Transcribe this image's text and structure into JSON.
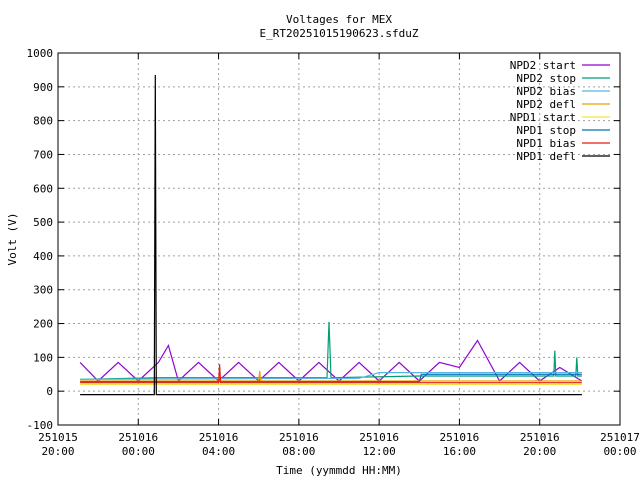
{
  "chart_data": {
    "type": "line",
    "title": "Voltages for MEX",
    "subtitle": "E_RT20251015190623.sfduZ",
    "x_label": "Time (yymmdd HH:MM)",
    "y_label": "Volt (V)",
    "xlim": [
      20,
      48
    ],
    "ylim": [
      -100,
      1000
    ],
    "xticks": [
      {
        "value": 20,
        "label": "251015 20:00"
      },
      {
        "value": 24,
        "label": "251016 00:00"
      },
      {
        "value": 28,
        "label": "251016 04:00"
      },
      {
        "value": 32,
        "label": "251016 08:00"
      },
      {
        "value": 36,
        "label": "251016 12:00"
      },
      {
        "value": 40,
        "label": "251016 16:00"
      },
      {
        "value": 44,
        "label": "251016 20:00"
      },
      {
        "value": 48,
        "label": "251017 00:00"
      }
    ],
    "yticks": [
      -100,
      0,
      100,
      200,
      300,
      400,
      500,
      600,
      700,
      800,
      900,
      1000
    ],
    "grid": true,
    "legend": "top-right",
    "series": [
      {
        "name": "NPD2 start",
        "color": "#9400d3",
        "x": [
          21.1,
          22,
          23,
          24,
          25,
          25.5,
          26,
          27,
          28,
          29,
          30,
          31,
          32,
          33,
          34,
          35,
          36,
          37,
          38,
          39,
          40,
          40.9,
          42,
          43,
          44,
          45,
          46.1
        ],
        "values": [
          85,
          30,
          85,
          30,
          85,
          135,
          30,
          85,
          30,
          85,
          30,
          85,
          30,
          85,
          30,
          85,
          30,
          85,
          30,
          85,
          70,
          150,
          30,
          85,
          30,
          70,
          30
        ]
      },
      {
        "name": "NPD2 stop",
        "color": "#009e73",
        "x": [
          21.1,
          25,
          30,
          33.4,
          33.5,
          33.6,
          38,
          44.7,
          44.75,
          44.8,
          45.8,
          45.85,
          45.9,
          46.1
        ],
        "values": [
          35,
          40,
          40,
          40,
          205,
          40,
          45,
          45,
          120,
          45,
          45,
          100,
          45,
          45
        ]
      },
      {
        "name": "NPD2 bias",
        "color": "#56b4e9",
        "x": [
          21.1,
          35,
          36,
          46.1
        ],
        "values": [
          35,
          38,
          55,
          55
        ]
      },
      {
        "name": "NPD2 defl",
        "color": "#e69f00",
        "x": [
          21.1,
          30,
          30.05,
          30.1,
          46.1
        ],
        "values": [
          30,
          30,
          60,
          30,
          30
        ]
      },
      {
        "name": "NPD1 start",
        "color": "#f0e442",
        "x": [
          21.1,
          46.1
        ],
        "values": [
          20,
          20
        ]
      },
      {
        "name": "NPD1 stop",
        "color": "#0072b2",
        "x": [
          21.1,
          38,
          38.1,
          46.1
        ],
        "values": [
          28,
          28,
          50,
          50
        ]
      },
      {
        "name": "NPD1 bias",
        "color": "#e51e10",
        "x": [
          21.1,
          28,
          28.05,
          28.1,
          46.1
        ],
        "values": [
          25,
          25,
          80,
          25,
          25
        ]
      },
      {
        "name": "NPD1 defl",
        "color": "#000000",
        "x": [
          21.1,
          24.8,
          24.85,
          24.9,
          46.1
        ],
        "values": [
          -10,
          -10,
          935,
          -10,
          -10
        ]
      }
    ]
  }
}
